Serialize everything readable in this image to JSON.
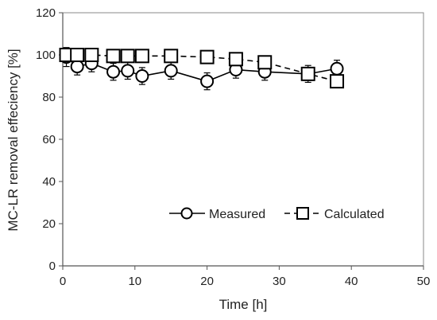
{
  "chart_data": {
    "type": "line",
    "title": "",
    "xlabel": "Time [h]",
    "ylabel": "MC-LR removal effeciency [%]",
    "xlim": [
      0,
      50
    ],
    "ylim": [
      0,
      120
    ],
    "x_ticks": [
      0,
      10,
      20,
      30,
      40,
      50
    ],
    "y_ticks": [
      0,
      20,
      40,
      60,
      80,
      100,
      120
    ],
    "grid": false,
    "legend_position": "inside lower right",
    "series": [
      {
        "name": "Measured",
        "marker": "circle",
        "line_style": "solid",
        "x": [
          0.5,
          2,
          4,
          7,
          9,
          11,
          15,
          20,
          24,
          28,
          34,
          38
        ],
        "y": [
          99,
          94.5,
          96,
          92,
          92.5,
          90,
          92.5,
          87.5,
          93,
          92,
          91,
          93.5
        ],
        "error": [
          4.5,
          4,
          4,
          4,
          4,
          4,
          4,
          4,
          4,
          4,
          4,
          4
        ]
      },
      {
        "name": "Calculated",
        "marker": "square",
        "line_style": "dashed",
        "x": [
          0.5,
          2,
          4,
          7,
          9,
          11,
          15,
          20,
          24,
          28,
          34,
          38
        ],
        "y": [
          100,
          100,
          100,
          99.5,
          99.5,
          99.5,
          99.5,
          99,
          98,
          96.5,
          91,
          87.5
        ],
        "error": [
          0,
          0,
          0,
          0,
          0,
          0,
          0,
          0,
          0,
          0,
          2.5,
          0
        ]
      }
    ],
    "colors": {
      "line": "#000000",
      "text": "#222222",
      "marker_fill": "#ffffff"
    }
  }
}
